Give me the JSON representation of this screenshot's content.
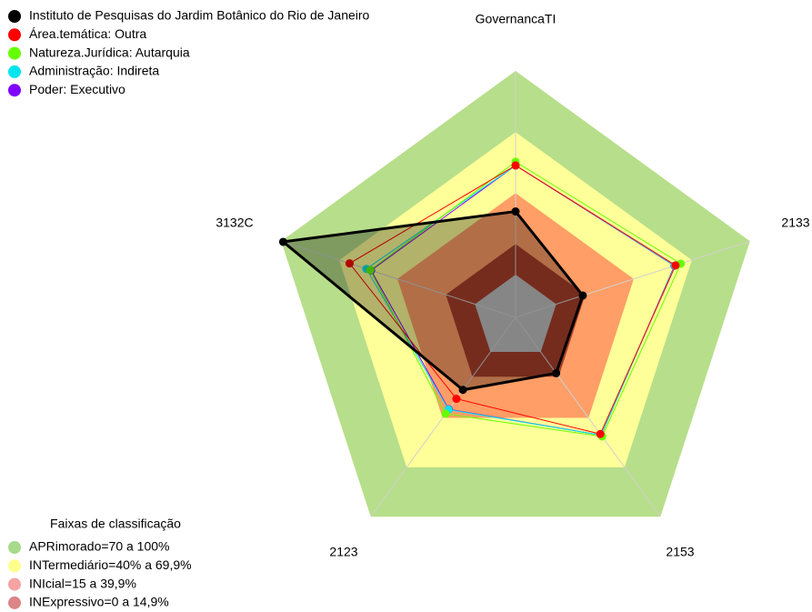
{
  "chart_data": {
    "type": "radar",
    "categories": [
      "GovernancaTI",
      "2133",
      "2153",
      "2123",
      "3132C"
    ],
    "rlim": [
      -21,
      100
    ],
    "series": [
      {
        "name": "Instituto de Pesquisas do Jardim Botânico do Rio de Janeiro",
        "color": "#000000",
        "values": [
          31,
          13.7,
          12.9,
          23,
          99
        ]
      },
      {
        "name": "Área.temática: Outra",
        "color": "#ff0000",
        "values": [
          53.6,
          61.6,
          49.8,
          28.4,
          64.7
        ]
      },
      {
        "name": "Natureza.Jurídica: Autarquia",
        "color": "#66ff00",
        "values": [
          55.4,
          64.3,
          51.3,
          37.5,
          54
        ]
      },
      {
        "name": "Administração: Indireta",
        "color": "#00e5ee",
        "values": [
          53.6,
          61.2,
          50.5,
          35,
          56
        ]
      },
      {
        "name": "Poder: Executivo",
        "color": "#8000ff",
        "values": [
          53.6,
          61,
          50.5,
          34.8,
          53.6
        ]
      }
    ],
    "bands_title": "Faixas de classificação",
    "bands": [
      {
        "name": "APRimorado=70 a 100%",
        "range": [
          70,
          100
        ],
        "color": "#b7de8a",
        "legend_color": "#a9d98b"
      },
      {
        "name": "INTermediário=40% a 69,9%",
        "range": [
          40,
          70
        ],
        "color": "#ffff99",
        "legend_color": "#ffff8c"
      },
      {
        "name": "INIcial=15 a 39,9%",
        "range": [
          15,
          40
        ],
        "color": "#ff9e66",
        "legend_color": "#f5a3a3"
      },
      {
        "name": "INExpressivo=0 a 14,9%",
        "range": [
          0,
          15
        ],
        "color": "#a83f2a",
        "legend_color": "#db8585"
      }
    ]
  }
}
